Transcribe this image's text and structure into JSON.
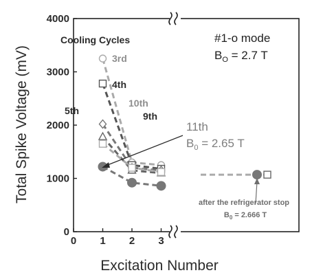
{
  "chart_data": {
    "type": "scatter",
    "xlabel": "Excitation Number",
    "ylabel": "Total Spike Voltage (mV)",
    "xlim": [
      0,
      3.5
    ],
    "ylim": [
      0,
      4000
    ],
    "x_ticks": [
      "0",
      "1",
      "2",
      "3"
    ],
    "y_ticks": [
      "0",
      "1000",
      "2000",
      "3000",
      "4000"
    ],
    "axis_break": true,
    "grid": false,
    "mode_label": "#1-o mode",
    "field_label": "B",
    "field_sub": "O",
    "field_value": " = 2.7 T",
    "cycles_title": "Cooling Cycles",
    "series": [
      {
        "name": "3rd",
        "marker": "circle-open",
        "color": "#aaaaaa",
        "x": [
          1,
          2,
          3
        ],
        "y": [
          3250,
          1300,
          1250
        ]
      },
      {
        "name": "4th",
        "marker": "square-open",
        "color": "#555555",
        "x": [
          1,
          2,
          3
        ],
        "y": [
          2780,
          1250,
          1180
        ]
      },
      {
        "name": "5th",
        "marker": "diamond-open",
        "color": "#777777",
        "x": [
          1,
          2,
          3
        ],
        "y": [
          2020,
          1200,
          1150
        ]
      },
      {
        "name": "9th",
        "marker": "triangle-open",
        "color": "#666666",
        "x": [
          1,
          2,
          3
        ],
        "y": [
          1780,
          1150,
          1100
        ]
      },
      {
        "name": "10th",
        "marker": "square-open",
        "color": "#aaaaaa",
        "x": [
          1,
          2,
          3
        ],
        "y": [
          1650,
          1200,
          1120
        ]
      },
      {
        "name": "11th",
        "marker": "circle-filled",
        "color": "#777777",
        "x": [
          1,
          2,
          3
        ],
        "y": [
          1220,
          920,
          860
        ]
      }
    ],
    "after_stop_series": {
      "marker_open": "square-open",
      "marker_filled": "circle-filled",
      "y_open": 1070,
      "y_filled": 1070
    },
    "annotations": {
      "label_3rd": "3rd",
      "label_4th": "4th",
      "label_5th": "5th",
      "label_10th": "10th",
      "label_9th": "9th",
      "label_11th": "11th",
      "b11_main": "B",
      "b11_sub": "0",
      "b11_value": " = 2.65 T",
      "note_line1": "after the refrigerator stop",
      "note_line2": "B",
      "note_sub": "0",
      "note_value": " = 2.666 T"
    }
  }
}
